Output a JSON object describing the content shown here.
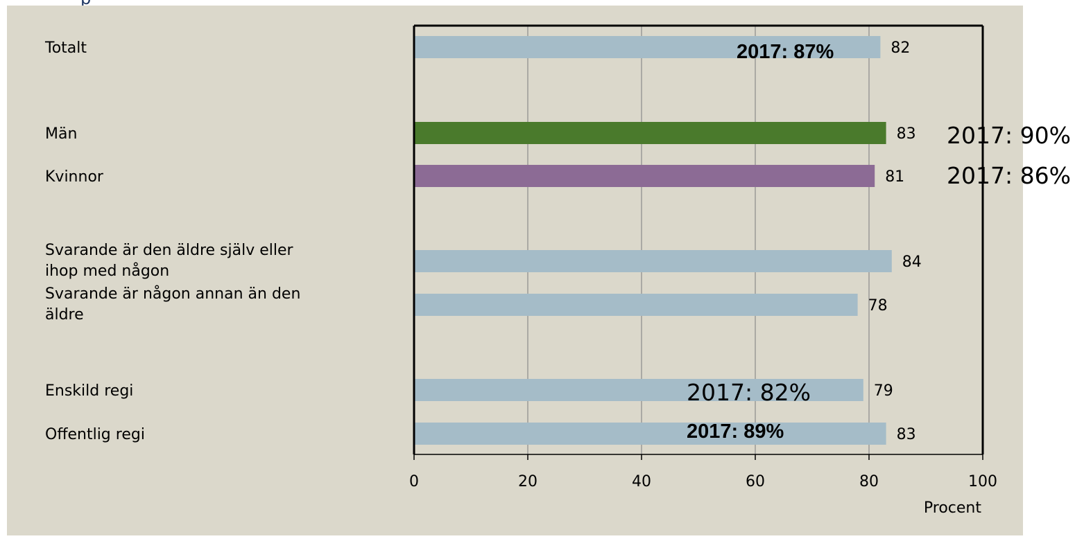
{
  "chart_data": {
    "type": "bar",
    "orientation": "horizontal",
    "categories": [
      "Totalt",
      "Män",
      "Kvinnor",
      "Svarande är den äldre själv eller ihop med någon",
      "Svarande är någon annan än den äldre",
      "Enskild regi",
      "Offentlig regi"
    ],
    "category_lines": [
      [
        "Totalt"
      ],
      [
        "Män"
      ],
      [
        "Kvinnor"
      ],
      [
        "Svarande är den äldre själv eller",
        "ihop med någon"
      ],
      [
        "Svarande är någon annan än den",
        "äldre"
      ],
      [
        "Enskild regi"
      ],
      [
        "Offentlig regi"
      ]
    ],
    "values": [
      82,
      83,
      81,
      84,
      78,
      79,
      83
    ],
    "value_labels": [
      "82",
      "83",
      "81",
      "84",
      "78",
      "79",
      "83"
    ],
    "colors": [
      "#a5bcc8",
      "#4a7a2c",
      "#8c6b95",
      "#a5bcc8",
      "#a5bcc8",
      "#a5bcc8",
      "#a5bcc8"
    ],
    "xlim": [
      0,
      100
    ],
    "xticks": [
      0,
      20,
      40,
      60,
      80,
      100
    ],
    "xtick_labels": [
      "0",
      "20",
      "40",
      "60",
      "80",
      "100"
    ],
    "xlabel": "Procent",
    "grid": true,
    "annotations": [
      {
        "category_index": 0,
        "text": "2017: 87%",
        "style": "bold"
      },
      {
        "category_index": 1,
        "text": "2017: 90%",
        "style": "plain"
      },
      {
        "category_index": 2,
        "text": "2017: 86%",
        "style": "plain"
      },
      {
        "category_index": 5,
        "text": "2017: 82%",
        "style": "plain"
      },
      {
        "category_index": 6,
        "text": "2017: 89%",
        "style": "bold"
      }
    ]
  },
  "colors": {
    "background": "#dbd8cb",
    "gridline": "#8a8a8a",
    "axis": "#000000"
  }
}
